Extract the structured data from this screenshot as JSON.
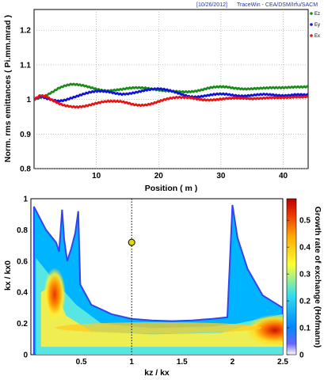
{
  "header": {
    "date": "[10/26/2012]",
    "software": "TraceWin - CEA/DSM/Irfu/SACM"
  },
  "chart_data": [
    {
      "type": "line",
      "xlabel": "Position ( m )",
      "ylabel": "Norm. rms emittances ( Pi.mm.mrad )",
      "xlim": [
        0,
        44
      ],
      "ylim": [
        0.8,
        1.26
      ],
      "xticks": [
        "10",
        "20",
        "30",
        "40"
      ],
      "yticks": [
        "0.8",
        "0.9",
        "1",
        "1.1",
        "1.2"
      ],
      "grid": true,
      "legend_position": "right",
      "series": [
        {
          "name": "Ez",
          "color": "#1a8a1a",
          "x": [
            0,
            1,
            2,
            3,
            4,
            5,
            6,
            7,
            8,
            9,
            10,
            11,
            12,
            13,
            14,
            15,
            16,
            17,
            18,
            19,
            20,
            21,
            22,
            23,
            24,
            25,
            26,
            27,
            28,
            29,
            30,
            31,
            32,
            33,
            34,
            35,
            36,
            37,
            38,
            39,
            40,
            41,
            42,
            43,
            44
          ],
          "values": [
            1.0,
            1.005,
            1.012,
            1.022,
            1.033,
            1.04,
            1.044,
            1.043,
            1.04,
            1.035,
            1.03,
            1.026,
            1.025,
            1.027,
            1.029,
            1.032,
            1.034,
            1.034,
            1.033,
            1.03,
            1.027,
            1.025,
            1.024,
            1.023,
            1.022,
            1.022,
            1.024,
            1.028,
            1.033,
            1.036,
            1.037,
            1.036,
            1.033,
            1.031,
            1.03,
            1.031,
            1.032,
            1.033,
            1.034,
            1.034,
            1.034,
            1.035,
            1.036,
            1.036,
            1.037
          ]
        },
        {
          "name": "Ey",
          "color": "#1111dd",
          "x": [
            0,
            1,
            2,
            3,
            4,
            5,
            6,
            7,
            8,
            9,
            10,
            11,
            12,
            13,
            14,
            15,
            16,
            17,
            18,
            19,
            20,
            21,
            22,
            23,
            24,
            25,
            26,
            27,
            28,
            29,
            30,
            31,
            32,
            33,
            34,
            35,
            36,
            37,
            38,
            39,
            40,
            41,
            42,
            43,
            44
          ],
          "values": [
            1.0,
            1.01,
            1.003,
            0.998,
            0.995,
            0.998,
            1.004,
            1.01,
            1.016,
            1.021,
            1.024,
            1.024,
            1.022,
            1.018,
            1.015,
            1.016,
            1.019,
            1.023,
            1.027,
            1.03,
            1.031,
            1.029,
            1.025,
            1.019,
            1.013,
            1.008,
            1.007,
            1.009,
            1.012,
            1.015,
            1.016,
            1.015,
            1.012,
            1.01,
            1.01,
            1.012,
            1.014,
            1.015,
            1.014,
            1.012,
            1.011,
            1.012,
            1.014,
            1.014,
            1.013
          ]
        },
        {
          "name": "Ex",
          "color": "#ee1111",
          "x": [
            0,
            1,
            2,
            3,
            4,
            5,
            6,
            7,
            8,
            9,
            10,
            11,
            12,
            13,
            14,
            15,
            16,
            17,
            18,
            19,
            20,
            21,
            22,
            23,
            24,
            25,
            26,
            27,
            28,
            29,
            30,
            31,
            32,
            33,
            34,
            35,
            36,
            37,
            38,
            39,
            40,
            41,
            42,
            43,
            44
          ],
          "values": [
            1.0,
            1.012,
            1.008,
            0.997,
            0.988,
            0.982,
            0.979,
            0.978,
            0.98,
            0.984,
            0.989,
            0.993,
            0.995,
            0.995,
            0.994,
            0.99,
            0.985,
            0.983,
            0.984,
            0.988,
            0.994,
            1.0,
            1.004,
            1.006,
            1.006,
            1.005,
            1.002,
            0.999,
            0.998,
            0.999,
            1.001,
            1.003,
            1.004,
            1.004,
            1.003,
            1.002,
            1.003,
            1.004,
            1.005,
            1.005,
            1.005,
            1.006,
            1.007,
            1.007,
            1.008
          ]
        }
      ]
    },
    {
      "type": "heatmap",
      "xlabel": "kz / kx",
      "ylabel": "kx / kx0",
      "xlim": [
        0,
        2.5
      ],
      "ylim": [
        0,
        1
      ],
      "xticks": [
        "0.5",
        "1",
        "1.5",
        "2",
        "2.5"
      ],
      "yticks": [
        "0",
        "0.2",
        "0.4",
        "0.6",
        "0.8",
        "1"
      ],
      "colorbar": {
        "label": "Growth rate of exchange (Hofmann)",
        "range": [
          0,
          0.58
        ],
        "ticks": [
          "0",
          "0.1",
          "0.2",
          "0.3",
          "0.4",
          "0.5"
        ],
        "colors": [
          "#ffffff",
          "#00aaff",
          "#33ddee",
          "#ffff33",
          "#ff8800",
          "#cc0000"
        ]
      },
      "marker": {
        "x": 1.0,
        "y": 0.72,
        "shape": "circle",
        "color": "#dddd00"
      },
      "reference_line": {
        "x": 1.0,
        "style": "dotted"
      },
      "stable_region_boundary": {
        "x": [
          0.03,
          0.15,
          0.25,
          0.28,
          0.31,
          0.33,
          0.36,
          0.4,
          0.44,
          0.47,
          0.49,
          0.6,
          0.8,
          1.0,
          1.2,
          1.4,
          1.6,
          1.8,
          1.95,
          2.0,
          2.05,
          2.15,
          2.3,
          2.5
        ],
        "y": [
          0.95,
          0.8,
          0.72,
          0.66,
          0.93,
          0.74,
          0.6,
          0.68,
          0.78,
          0.92,
          0.45,
          0.32,
          0.26,
          0.23,
          0.22,
          0.215,
          0.22,
          0.23,
          0.24,
          0.96,
          0.75,
          0.55,
          0.38,
          0.3
        ]
      }
    }
  ]
}
